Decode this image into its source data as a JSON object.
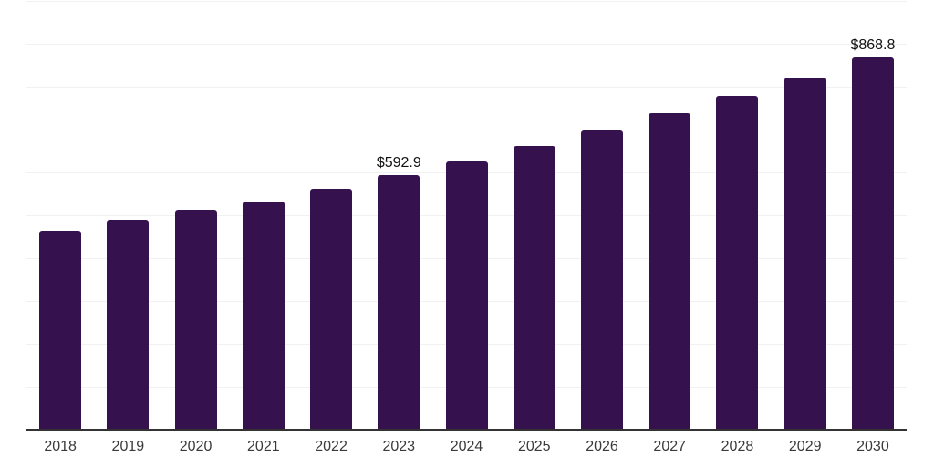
{
  "chart_data": {
    "type": "bar",
    "title": "",
    "xlabel": "",
    "ylabel": "",
    "categories": [
      "2018",
      "2019",
      "2020",
      "2021",
      "2022",
      "2023",
      "2024",
      "2025",
      "2026",
      "2027",
      "2028",
      "2029",
      "2030"
    ],
    "values": [
      464.0,
      489.7,
      512.0,
      532.4,
      561.0,
      592.9,
      626.1,
      661.2,
      698.2,
      737.3,
      778.6,
      822.2,
      868.8
    ],
    "value_labels": [
      "",
      "",
      "",
      "",
      "",
      "$592.9",
      "",
      "",
      "",
      "",
      "",
      "",
      "$868.8"
    ],
    "currency_prefix": "$",
    "ylim": [
      0,
      1000
    ],
    "gridline_step": 100,
    "grid": "horizontal",
    "legend": "none"
  },
  "style": {
    "bar_color": "#35124E",
    "gridline_color": "#f1f1f1",
    "axis_line_color": "#333333",
    "tick_label_color": "#3a3a3a",
    "value_label_color": "#111111",
    "background_color": "#ffffff"
  }
}
